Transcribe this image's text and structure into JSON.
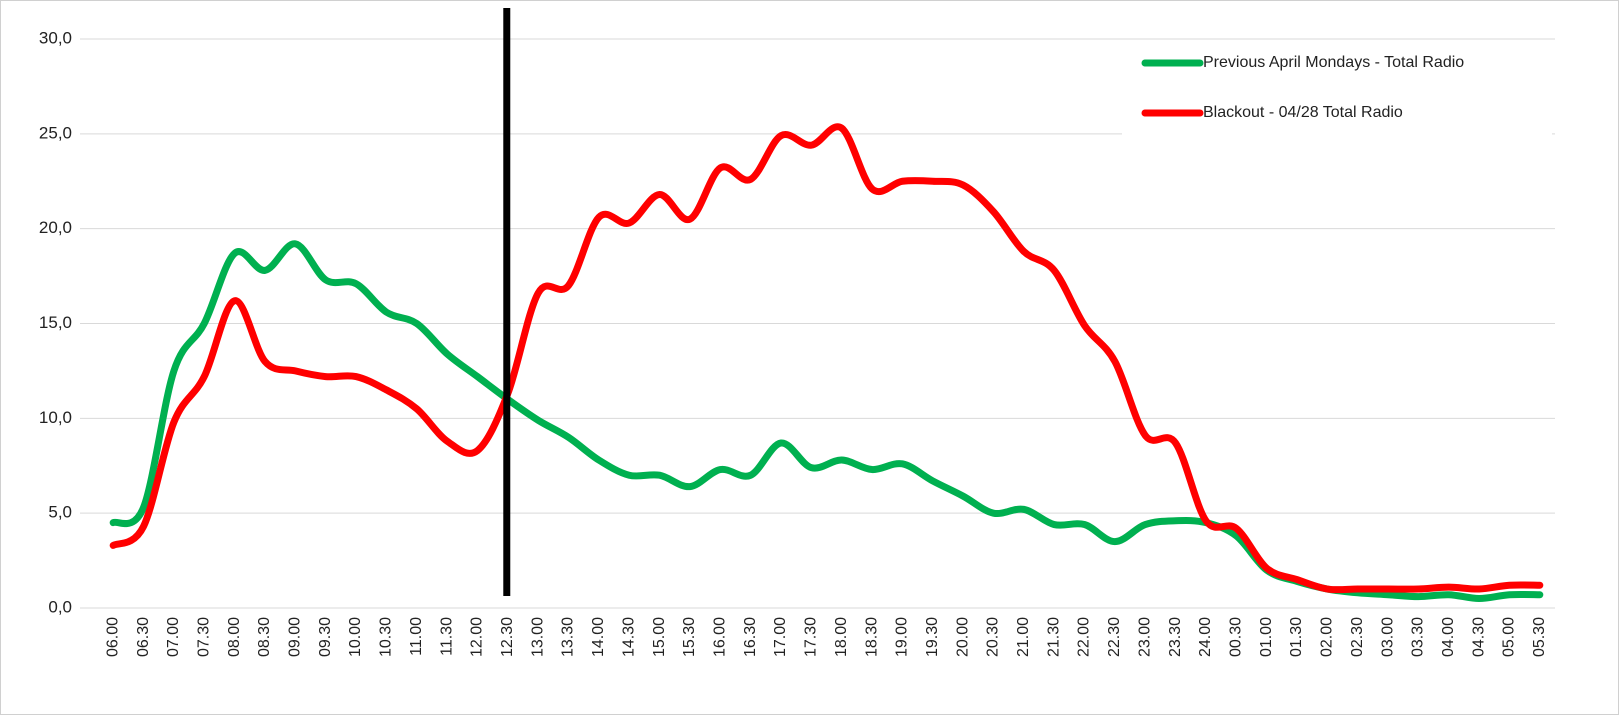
{
  "chart_data": {
    "type": "line",
    "categories": [
      "06.00",
      "06.30",
      "07.00",
      "07.30",
      "08.00",
      "08.30",
      "09.00",
      "09.30",
      "10.00",
      "10.30",
      "11.00",
      "11.30",
      "12.00",
      "12.30",
      "13.00",
      "13.30",
      "14.00",
      "14.30",
      "15.00",
      "15.30",
      "16.00",
      "16.30",
      "17.00",
      "17.30",
      "18.00",
      "18.30",
      "19.00",
      "19.30",
      "20.00",
      "20.30",
      "21.00",
      "21.30",
      "22.00",
      "22.30",
      "23.00",
      "23.30",
      "24.00",
      "00.30",
      "01.00",
      "01.30",
      "02.00",
      "02.30",
      "03.00",
      "03.30",
      "04.00",
      "04.30",
      "05.00",
      "05.30"
    ],
    "series": [
      {
        "name": "Previous April Mondays - Total Radio",
        "color": "#00b050",
        "values": [
          4.5,
          5.3,
          12.5,
          15.0,
          18.7,
          17.8,
          19.2,
          17.3,
          17.1,
          15.6,
          15.0,
          13.4,
          12.2,
          11.0,
          9.9,
          9.0,
          7.8,
          7.0,
          7.0,
          6.4,
          7.3,
          7.0,
          8.7,
          7.4,
          7.8,
          7.3,
          7.6,
          6.7,
          5.9,
          5.0,
          5.2,
          4.4,
          4.4,
          3.5,
          4.4,
          4.6,
          4.5,
          3.8,
          2.0,
          1.4,
          1.0,
          0.8,
          0.7,
          0.6,
          0.7,
          0.5,
          0.7,
          0.7
        ]
      },
      {
        "name": "Blackout - 04/28 Total Radio",
        "color": "#ff0000",
        "values": [
          3.3,
          4.3,
          9.8,
          12.2,
          16.2,
          13.0,
          12.5,
          12.2,
          12.2,
          11.5,
          10.5,
          8.8,
          8.3,
          11.3,
          16.6,
          17.0,
          20.6,
          20.3,
          21.8,
          20.5,
          23.2,
          22.6,
          24.9,
          24.4,
          25.3,
          22.1,
          22.5,
          22.5,
          22.3,
          20.9,
          18.8,
          17.8,
          14.9,
          13.0,
          9.1,
          8.7,
          4.6,
          4.2,
          2.1,
          1.5,
          1.0,
          1.0,
          1.0,
          1.0,
          1.1,
          1.0,
          1.2,
          1.2
        ]
      }
    ],
    "ylim": [
      0,
      30
    ],
    "yticks": [
      {
        "value": 0,
        "label": "0,0"
      },
      {
        "value": 5,
        "label": "5,0"
      },
      {
        "value": 10,
        "label": "10,0"
      },
      {
        "value": 15,
        "label": "15,0"
      },
      {
        "value": 20,
        "label": "20,0"
      },
      {
        "value": 25,
        "label": "25,0"
      },
      {
        "value": 30,
        "label": "30,0"
      }
    ],
    "grid": true,
    "legend": "top-right",
    "reference_line": {
      "x": "12.30",
      "color": "#000000"
    }
  }
}
